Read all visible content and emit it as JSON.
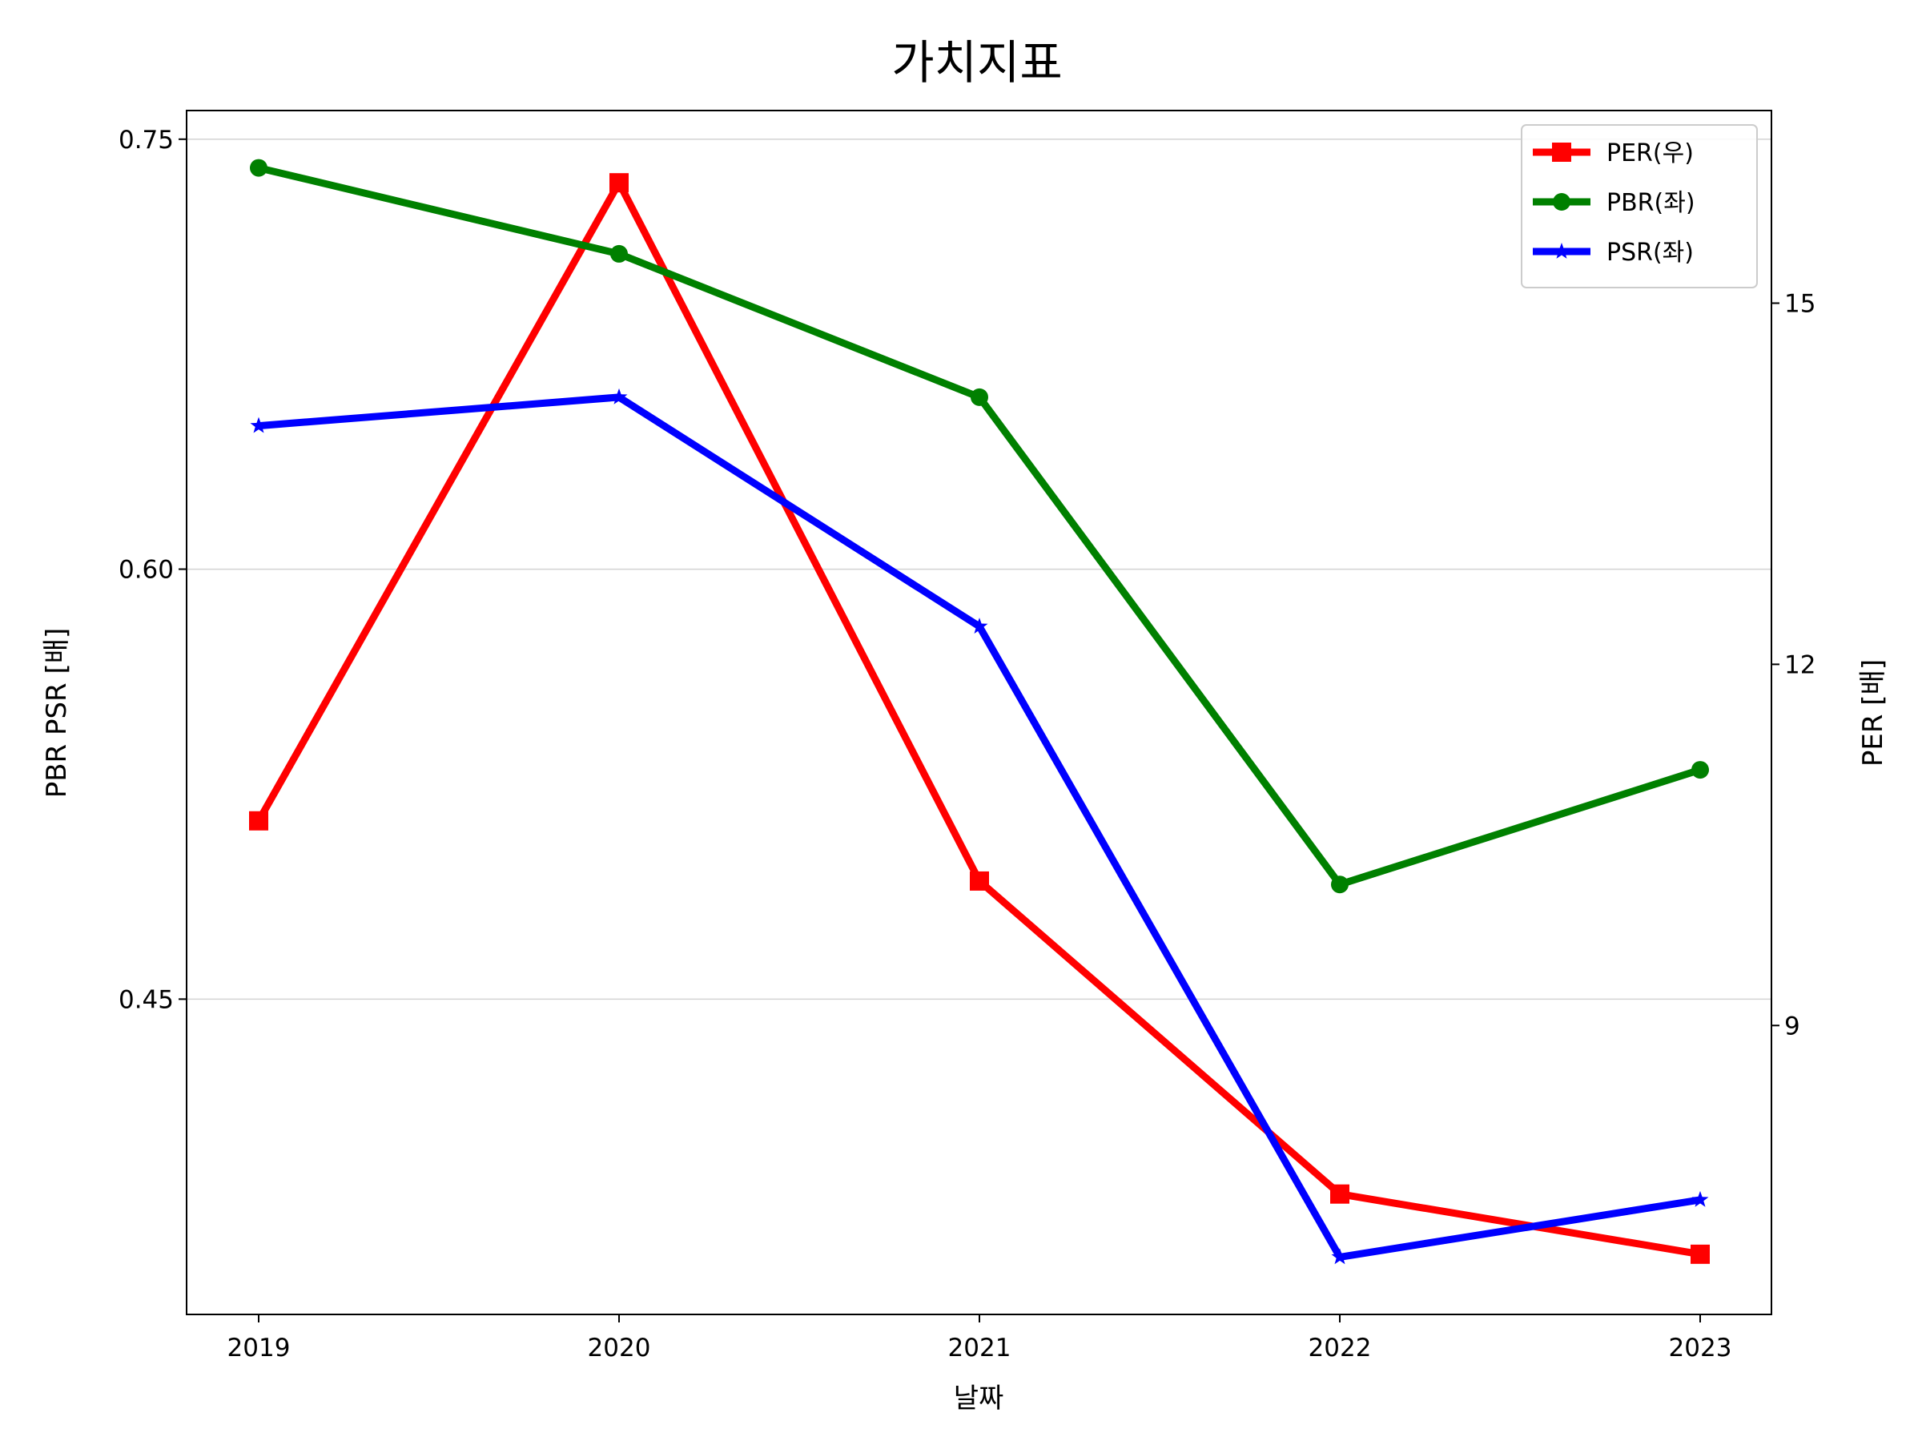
{
  "chart_data": {
    "type": "line",
    "title": "가치지표",
    "xlabel": "날짜",
    "ylabel_left": "PBR PSR [배]",
    "ylabel_right": "PER [배]",
    "categories": [
      "2019",
      "2020",
      "2021",
      "2022",
      "2023"
    ],
    "ylim_left": [
      0.34,
      0.76
    ],
    "ylim_right": [
      6.6,
      16.6
    ],
    "yticks_left": [
      0.45,
      0.6,
      0.75
    ],
    "yticks_left_labels": [
      "0.45",
      "0.60",
      "0.75"
    ],
    "yticks_right": [
      9,
      12,
      15
    ],
    "yticks_right_labels": [
      "9",
      "12",
      "15"
    ],
    "grid": "horizontal (left axis)",
    "legend_position": "top-right",
    "series": [
      {
        "name": "PER(우)",
        "axis": "right",
        "color": "#ff0000",
        "marker": "square",
        "values": [
          10.7,
          16.0,
          10.2,
          7.6,
          7.1
        ]
      },
      {
        "name": "PBR(좌)",
        "axis": "left",
        "color": "#008000",
        "marker": "circle",
        "values": [
          0.74,
          0.71,
          0.66,
          0.49,
          0.53
        ]
      },
      {
        "name": "PSR(좌)",
        "axis": "left",
        "color": "#0000ff",
        "marker": "star",
        "values": [
          0.65,
          0.66,
          0.58,
          0.36,
          0.38
        ]
      }
    ],
    "label_colors": {
      "left_axis_label": "#008000",
      "right_axis_label": "#ff0000"
    }
  }
}
